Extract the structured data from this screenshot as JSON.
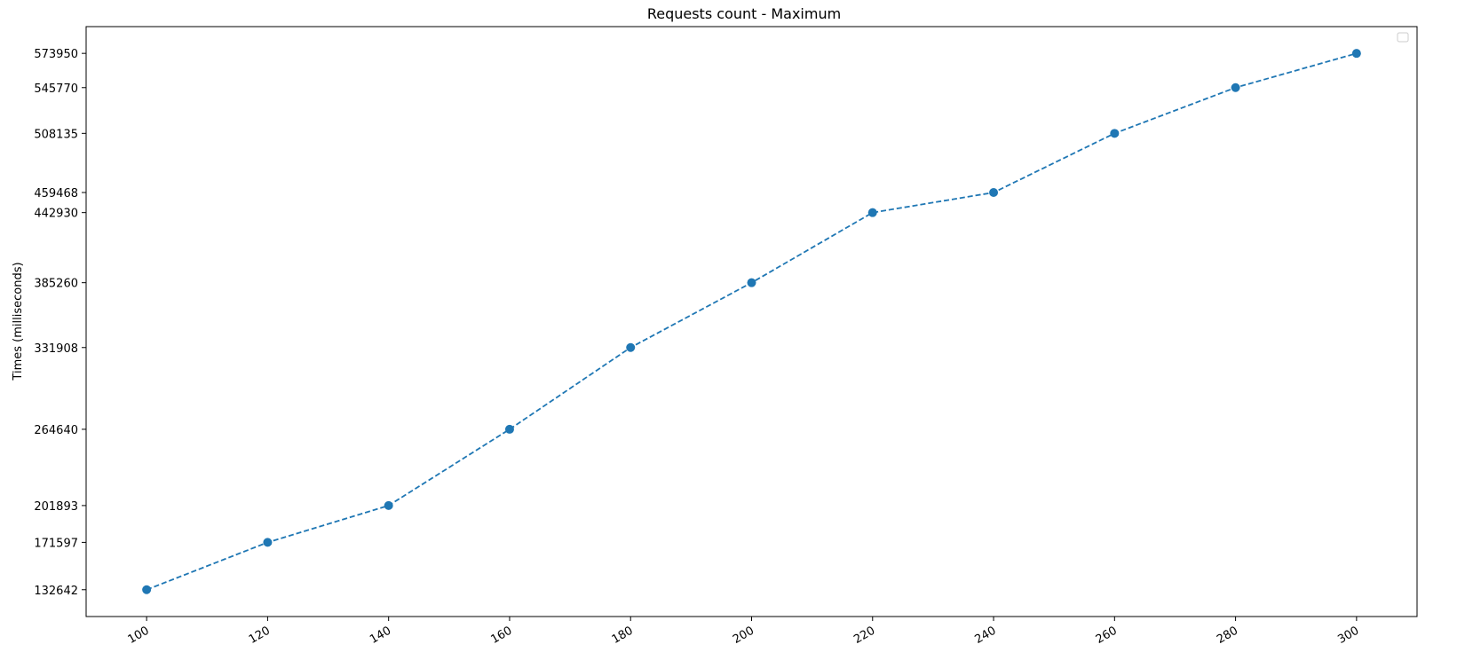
{
  "chart_data": {
    "type": "line",
    "title": "Requests count - Maximum",
    "xlabel": "",
    "ylabel": "Times (milliseconds)",
    "x": [
      100,
      120,
      140,
      160,
      180,
      200,
      220,
      240,
      260,
      280,
      300
    ],
    "series": [
      {
        "values": [
          132642,
          171597,
          201893,
          264640,
          331908,
          385260,
          442930,
          459468,
          508135,
          545770,
          573950
        ],
        "color": "#1f77b4",
        "line_style": "dashed",
        "marker": "circle"
      }
    ],
    "x_ticks": [
      100,
      120,
      140,
      160,
      180,
      200,
      220,
      240,
      260,
      280,
      300
    ],
    "y_ticks": [
      132642,
      171597,
      201893,
      264640,
      331908,
      385260,
      442930,
      459468,
      508135,
      545770,
      573950
    ],
    "xlim": [
      90,
      310
    ],
    "ylim": [
      110576,
      595966
    ],
    "x_tick_rotation": -30,
    "grid": false,
    "legend": {
      "placement": "top-right",
      "entries": []
    }
  }
}
